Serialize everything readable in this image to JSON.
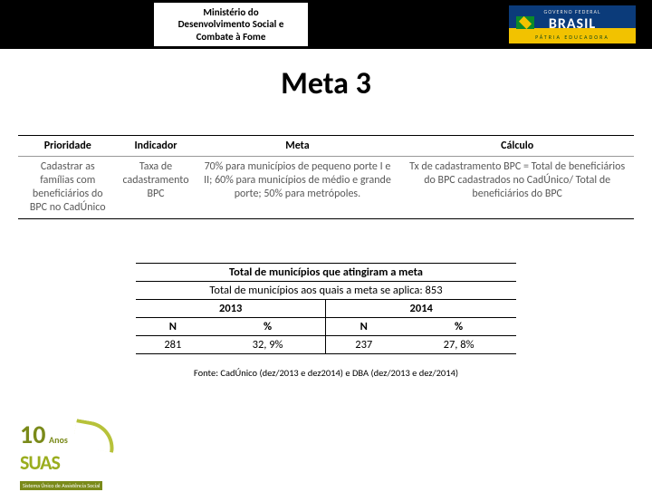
{
  "header": {
    "ministerio_line1": "Ministério do",
    "ministerio_line2": "Desenvolvimento Social e",
    "ministerio_line3": "Combate à Fome",
    "gov_line1": "GOVERNO FEDERAL",
    "gov_brand": "BRASIL",
    "gov_line3": "PÁTRIA EDUCADORA"
  },
  "title": "Meta 3",
  "table1": {
    "headers": [
      "Prioridade",
      "Indicador",
      "Meta",
      "Cálculo"
    ],
    "row": {
      "prioridade": "Cadastrar as famílias com beneficiários do BPC no CadÚnico",
      "indicador": "Taxa de cadastramento BPC",
      "meta": "70% para municípios de pequeno porte I e II; 60% para municípios de médio e grande porte; 50% para metrópoles.",
      "calculo": "Tx de cadastramento BPC = Total de beneficiários do BPC cadastrados no CadÚnico/ Total de beneficiários do BPC"
    }
  },
  "table2": {
    "title": "Total de municípios que atingiram a meta",
    "subtitle": "Total de municípios aos quais a meta se aplica: 853",
    "year1": "2013",
    "year2": "2014",
    "col_n": "N",
    "col_pct": "%",
    "n1": "281",
    "pct1": "32, 9%",
    "n2": "237",
    "pct2": "27, 8%"
  },
  "fonte": "Fonte: CadÚnico (dez/2013 e dez2014) e DBA (dez/2013 e dez/2014)",
  "suas": {
    "ten": "10",
    "anos": "Anos",
    "name": "SUAS",
    "full": "Sistema Único de Assistência Social"
  }
}
